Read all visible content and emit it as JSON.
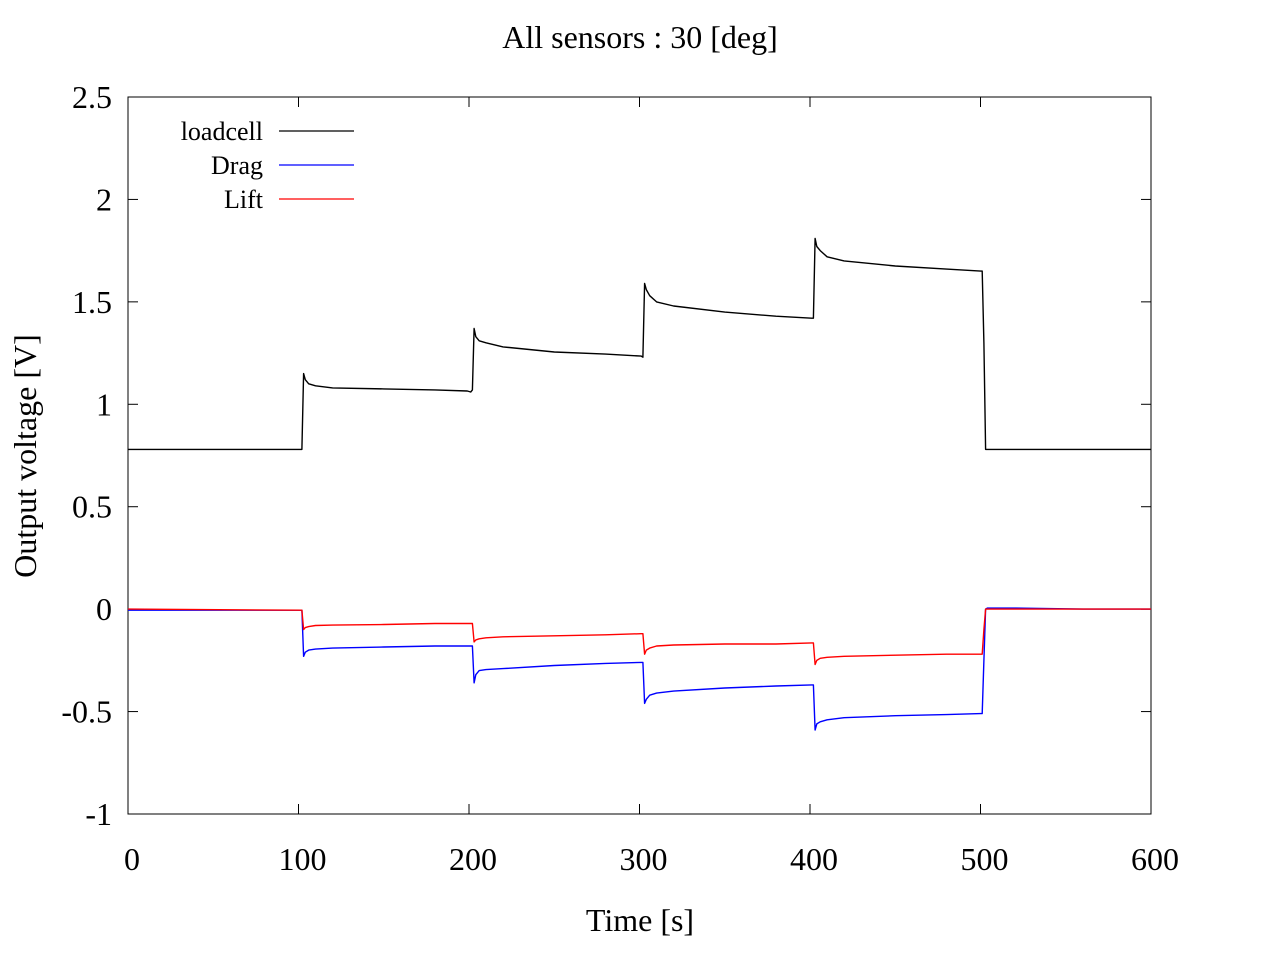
{
  "chart_data": {
    "type": "line",
    "title": "All sensors : 30 [deg]",
    "xlabel": "Time [s]",
    "ylabel": "Output voltage [V]",
    "xlim": [
      0,
      600
    ],
    "ylim": [
      -1,
      2.5
    ],
    "xticks": [
      0,
      100,
      200,
      300,
      400,
      500,
      600
    ],
    "xtick_labels": [
      "0",
      "100",
      "200",
      "300",
      "400",
      "500",
      "600"
    ],
    "yticks": [
      -1,
      -0.5,
      0,
      0.5,
      1,
      1.5,
      2,
      2.5
    ],
    "ytick_labels": [
      "-1",
      "-0.5",
      "0",
      "0.5",
      "1",
      "1.5",
      "2",
      "2.5"
    ],
    "grid": false,
    "legend_position": "top-left",
    "series": [
      {
        "name": "loadcell",
        "color": "#000000",
        "x": [
          0,
          102,
          103,
          104,
          106,
          110,
          120,
          150,
          180,
          199,
          201,
          202,
          203,
          204,
          206,
          210,
          220,
          250,
          280,
          301,
          302,
          303,
          304,
          306,
          310,
          320,
          350,
          380,
          401,
          402,
          403,
          404,
          406,
          410,
          420,
          450,
          480,
          500,
          501,
          502,
          503,
          504,
          520,
          560,
          600
        ],
        "y": [
          0.78,
          0.78,
          1.15,
          1.12,
          1.1,
          1.09,
          1.08,
          1.075,
          1.07,
          1.065,
          1.06,
          1.07,
          1.37,
          1.33,
          1.31,
          1.3,
          1.28,
          1.255,
          1.245,
          1.235,
          1.23,
          1.59,
          1.56,
          1.53,
          1.5,
          1.48,
          1.45,
          1.43,
          1.42,
          1.42,
          1.81,
          1.77,
          1.75,
          1.72,
          1.7,
          1.675,
          1.66,
          1.65,
          1.65,
          1.3,
          0.78,
          0.78,
          0.78,
          0.78,
          0.78
        ]
      },
      {
        "name": "Drag",
        "color": "#0000ff",
        "x": [
          0,
          102,
          103,
          104,
          106,
          110,
          120,
          150,
          180,
          199,
          201,
          202,
          203,
          204,
          206,
          210,
          220,
          250,
          280,
          301,
          302,
          303,
          304,
          306,
          310,
          320,
          350,
          380,
          401,
          402,
          403,
          404,
          406,
          410,
          420,
          450,
          480,
          500,
          501,
          502,
          503,
          504,
          520,
          560,
          600
        ],
        "y": [
          -0.005,
          -0.005,
          -0.23,
          -0.21,
          -0.2,
          -0.195,
          -0.19,
          -0.185,
          -0.18,
          -0.18,
          -0.18,
          -0.18,
          -0.36,
          -0.32,
          -0.3,
          -0.295,
          -0.29,
          -0.275,
          -0.265,
          -0.26,
          -0.26,
          -0.46,
          -0.44,
          -0.42,
          -0.41,
          -0.4,
          -0.385,
          -0.375,
          -0.37,
          -0.37,
          -0.59,
          -0.56,
          -0.55,
          -0.54,
          -0.53,
          -0.52,
          -0.515,
          -0.51,
          -0.51,
          -0.25,
          0.0,
          0.005,
          0.005,
          0.0,
          0.0
        ]
      },
      {
        "name": "Lift",
        "color": "#ff0000",
        "x": [
          0,
          102,
          103,
          104,
          106,
          110,
          120,
          150,
          180,
          199,
          201,
          202,
          203,
          204,
          206,
          210,
          220,
          250,
          280,
          301,
          302,
          303,
          304,
          306,
          310,
          320,
          350,
          380,
          401,
          402,
          403,
          404,
          406,
          410,
          420,
          450,
          480,
          500,
          501,
          502,
          503,
          504,
          520,
          560,
          600
        ],
        "y": [
          0.0,
          -0.005,
          -0.1,
          -0.09,
          -0.085,
          -0.08,
          -0.078,
          -0.075,
          -0.07,
          -0.07,
          -0.07,
          -0.07,
          -0.16,
          -0.15,
          -0.145,
          -0.14,
          -0.135,
          -0.13,
          -0.125,
          -0.12,
          -0.12,
          -0.22,
          -0.2,
          -0.19,
          -0.18,
          -0.175,
          -0.17,
          -0.17,
          -0.165,
          -0.165,
          -0.27,
          -0.25,
          -0.24,
          -0.235,
          -0.23,
          -0.225,
          -0.22,
          -0.22,
          -0.22,
          -0.1,
          0.0,
          0.0,
          0.0,
          0.0,
          0.0
        ]
      }
    ]
  }
}
